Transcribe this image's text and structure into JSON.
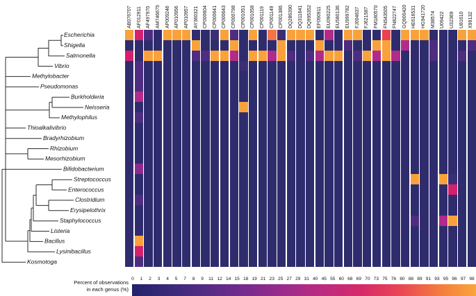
{
  "chart_data": {
    "type": "heatmap",
    "x_categories": [
      "AB076707",
      "AF012911",
      "AF497970",
      "AM746675",
      "AP009246",
      "AP010956",
      "AP010957",
      "AY360321",
      "CP000604",
      "CP000641",
      "CP000643",
      "CP000798",
      "CP001051",
      "CP001058",
      "CP001119",
      "CP001149",
      "CP001386",
      "DQ286390",
      "DQ311641",
      "DQ995352",
      "EF090911",
      "EU090225",
      "EU580136",
      "EU999782",
      "FJ004637",
      "FJ621587",
      "FM180570",
      "FN543505",
      "FN822747",
      "GQ900420",
      "HE616531",
      "HG941720",
      "M38574",
      "U09422",
      "U32369",
      "U81610",
      "X99132"
    ],
    "y_categories": [
      "Escherichia",
      "Shigella",
      "Salmonella",
      "Vibrio",
      "Methylobacter",
      "Pseudomonas",
      "Burkholderia",
      "Neisseria",
      "Methylophilus",
      "Thioalkalivibrio",
      "Bradyrhizobium",
      "Rhizobium",
      "Mesorhizobium",
      "Bifidobacterium",
      "Streptococcus",
      "Enterococcus",
      "Clostridium",
      "Erysipelothrix",
      "Staphylococcus",
      "Listeria",
      "Bacillus",
      "Lysinibacillus",
      "Kosmotoga"
    ],
    "cells_color_codes": [
      "ocpnooonndopnonOdooonmnoonnRnooonnnoo",
      "nnnnnnnonnnonnnnonnnonnpnnoonmnnpnnnp",
      "cnoonnnppoomnoomopnpmoonpomomnnnpnnpn",
      "npnnnnnnnnnndnnnnnnnnnnnnnnnnnnnnnnnn",
      "npnnnnnnnnnnnnnnnnnnnnnnnnnnnnnnnnnnn",
      "npnnnnnnnnnnnnnnnnnnnnnnnnnnnnnnnnnnn",
      "nmnnnnnnnnnnnnnnnnnnnnnnnnnnnnnnnnnnn",
      "nnnnnnnnnnnnonnnnnnnnnnnnnnnnnnnnnnnn",
      "npnnnnnnnnnnnnnnnnnnnnnnnnnnnnnnnnnnn",
      "nnnnnnnnnnnnnnnnnnnnnnnnnnnnnnnnnnnnn",
      "nnnnnnnnnnnnnnnnnnnnnnnnnnnnnnnnnnnnn",
      "nnnnnnnnnnnnnnnnnnnnnnnnnnnnnnnnnnnnn",
      "nnnnnnnnnnnnnnnnnnnnnnnnnnnnnnnnnnnnn",
      "nPnnnnnnnnnnnnnnnnnnnnnnnnnnnnnnnnnnn",
      "nnnnnnnnnnnnnnnnnnnnnnnnnnnnnnonnodnn",
      "nnnnnnnnnnnnnnnnnnnnnnnnnnnnnnnnnncnn",
      "npnnnnnnnnnnnnnnnnnnnnnnnnnnnnnnnnnnn",
      "nnnnnnnnnnnnnnnnnnnnnnnnnnnnnnnnnnnnn",
      "nnnnnnnnnnnnnnnnnnnnnnnnnnnnnnpnnmonn",
      "nnnnnnnnnnnnnnnnnnnnnnnnnnnnnnnnnnnnn",
      "nonnnnnnnnnnnnnnnnnnnnnnnnnnnnnnnnnnn",
      "ncnnnnnnnnnnnnnnnnnnnnnnnnnnnnnnnnnnn",
      "npnnnnnnnnnnnnnnnnnnnnnnnnnnnnnnnnnnn"
    ],
    "code_to_percent_estimate": {
      "n": 0,
      "d": 5,
      "p": 15,
      "P": 30,
      "m": 45,
      "c": 60,
      "R": 70,
      "O": 78,
      "o": 92
    },
    "colorbar_ticks": [
      0,
      1,
      2,
      3,
      4,
      5,
      7,
      8,
      9,
      11,
      12,
      14,
      15,
      18,
      19,
      21,
      23,
      25,
      27,
      29,
      31,
      40,
      45,
      55,
      60,
      68,
      69,
      70,
      73,
      75,
      76,
      80,
      88,
      89,
      91,
      93,
      95,
      96,
      97,
      98
    ],
    "legend_position": "bottom",
    "grid": false
  },
  "palette": {
    "n": "#2f2c6d",
    "d": "#3b2e74",
    "p": "#4e2d80",
    "P": "#8e2a8c",
    "m": "#b12b8a",
    "c": "#d4206e",
    "R": "#e94150",
    "O": "#f3744a",
    "o": "#f9a23c"
  },
  "colorbar": {
    "label_line1": "Percent of observations",
    "label_line2": "in each genus (%)",
    "gradient": [
      "#22216b",
      "#3b2a78",
      "#562b85",
      "#772b8d",
      "#9c2b8c",
      "#bc2b7f",
      "#d62a69",
      "#e94555",
      "#f4793f",
      "#f9a53c"
    ]
  }
}
